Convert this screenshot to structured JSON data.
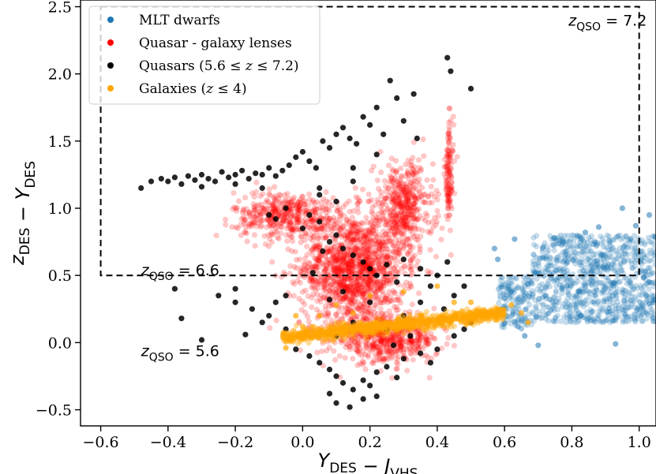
{
  "chart_data": {
    "type": "scatter",
    "xlabel": "Y_DES − J_VHS",
    "ylabel": "z_DES − Y_DES",
    "xlim": [
      -0.66,
      1.05
    ],
    "ylim": [
      -0.62,
      2.55
    ],
    "xticks": [
      -0.6,
      -0.4,
      -0.2,
      0.0,
      0.2,
      0.4,
      0.6,
      0.8,
      1.0
    ],
    "xtick_labels": [
      "−0.6",
      "−0.4",
      "−0.2",
      "0.0",
      "0.2",
      "0.4",
      "0.6",
      "0.8",
      "1.0"
    ],
    "yticks": [
      -0.5,
      0.0,
      0.5,
      1.0,
      1.5,
      2.0,
      2.5
    ],
    "ytick_labels": [
      "−0.5",
      "0.0",
      "0.5",
      "1.0",
      "1.5",
      "2.0",
      "2.5"
    ],
    "legend_position": "top-left",
    "legend": [
      {
        "label": "MLT dwarfs",
        "color": "#1f77b4"
      },
      {
        "label": "Quasar - galaxy lenses",
        "color": "#ff0000"
      },
      {
        "label": "Quasars (5.6 ≤ z ≤ 7.2)",
        "color": "#000000"
      },
      {
        "label": "Galaxies (z ≤ 4)",
        "color": "#ffa500"
      }
    ],
    "selection_box": {
      "x_min": -0.6,
      "x_max": 1.0,
      "y_min": 0.5,
      "y_max": 2.5
    },
    "annotations": [
      {
        "text": "z_QSO = 7.2",
        "x": 0.79,
        "y": 2.36
      },
      {
        "text": "z_QSO = 6.6",
        "x": -0.48,
        "y": 0.5
      },
      {
        "text": "z_QSO = 5.6",
        "x": -0.48,
        "y": -0.1
      }
    ],
    "series": [
      {
        "name": "MLT dwarfs",
        "color": "#1f77b4",
        "opacity": 0.25,
        "clusters": [
          {
            "n": 900,
            "x_range": [
              0.68,
              1.05
            ],
            "y_range": [
              0.15,
              0.8
            ]
          },
          {
            "n": 150,
            "x_range": [
              0.58,
              0.68
            ],
            "y_range": [
              0.1,
              0.5
            ]
          }
        ],
        "points": [
          [
            0.62,
            0.38
          ],
          [
            0.64,
            0.12
          ],
          [
            0.66,
            0.05
          ],
          [
            0.7,
            -0.02
          ],
          [
            0.93,
            -0.01
          ],
          [
            0.82,
            0.38
          ],
          [
            0.95,
            1.0
          ],
          [
            0.99,
            0.87
          ],
          [
            1.03,
            0.95
          ],
          [
            0.88,
            0.86
          ],
          [
            0.84,
            0.82
          ],
          [
            0.63,
            0.77
          ],
          [
            0.57,
            0.7
          ],
          [
            0.58,
            0.62
          ],
          [
            0.6,
            0.33
          ]
        ]
      },
      {
        "name": "Quasar - galaxy lenses",
        "color": "#ff0000",
        "opacity": 0.22,
        "clusters": [
          {
            "n": 1300,
            "center": [
              0.15,
              0.55
            ],
            "spread": [
              0.14,
              0.38
            ]
          },
          {
            "n": 400,
            "center": [
              -0.05,
              0.95
            ],
            "spread": [
              0.14,
              0.16
            ]
          },
          {
            "n": 450,
            "center": [
              0.3,
              1.0
            ],
            "spread": [
              0.08,
              0.32
            ]
          },
          {
            "n": 120,
            "center": [
              0.435,
              1.25
            ],
            "spread": [
              0.012,
              0.35
            ]
          },
          {
            "n": 500,
            "center": [
              0.25,
              0.02
            ],
            "spread": [
              0.14,
              0.15
            ]
          }
        ]
      },
      {
        "name": "Quasars (5.6 ≤ z ≤ 7.2)",
        "color": "#000000",
        "opacity": 0.85,
        "points": [
          [
            -0.48,
            1.15
          ],
          [
            -0.45,
            1.2
          ],
          [
            -0.42,
            1.22
          ],
          [
            -0.4,
            1.2
          ],
          [
            -0.38,
            1.23
          ],
          [
            -0.36,
            1.18
          ],
          [
            -0.34,
            1.24
          ],
          [
            -0.32,
            1.21
          ],
          [
            -0.3,
            1.25
          ],
          [
            -0.28,
            1.22
          ],
          [
            -0.26,
            1.2
          ],
          [
            -0.24,
            1.27
          ],
          [
            -0.22,
            1.23
          ],
          [
            -0.2,
            1.25
          ],
          [
            -0.18,
            1.28
          ],
          [
            -0.16,
            1.22
          ],
          [
            -0.14,
            1.26
          ],
          [
            -0.12,
            1.25
          ],
          [
            -0.1,
            1.3
          ],
          [
            -0.08,
            1.24
          ],
          [
            -0.06,
            1.28
          ],
          [
            -0.04,
            1.32
          ],
          [
            -0.02,
            1.38
          ],
          [
            0.0,
            1.42
          ],
          [
            0.02,
            1.35
          ],
          [
            0.04,
            1.3
          ],
          [
            0.06,
            1.5
          ],
          [
            0.08,
            1.45
          ],
          [
            0.1,
            1.55
          ],
          [
            0.12,
            1.6
          ],
          [
            0.14,
            1.52
          ],
          [
            0.16,
            1.48
          ],
          [
            0.18,
            1.68
          ],
          [
            0.2,
            1.62
          ],
          [
            0.22,
            1.75
          ],
          [
            0.24,
            1.55
          ],
          [
            0.26,
            1.95
          ],
          [
            0.28,
            1.82
          ],
          [
            0.3,
            1.65
          ],
          [
            0.33,
            1.85
          ],
          [
            0.43,
            2.12
          ],
          [
            0.44,
            2.02
          ],
          [
            0.5,
            1.89
          ],
          [
            0.34,
            1.52
          ],
          [
            0.15,
            1.3
          ],
          [
            -0.2,
            1.18
          ],
          [
            -0.12,
            1.15
          ],
          [
            -0.3,
            1.16
          ],
          [
            0.05,
            1.1
          ],
          [
            0.22,
            1.4
          ],
          [
            0.0,
            0.85
          ],
          [
            0.05,
            0.9
          ],
          [
            0.08,
            0.75
          ],
          [
            0.1,
            0.8
          ],
          [
            0.12,
            0.7
          ],
          [
            0.15,
            0.65
          ],
          [
            0.18,
            0.6
          ],
          [
            0.2,
            0.55
          ],
          [
            0.22,
            0.5
          ],
          [
            0.25,
            0.58
          ],
          [
            0.28,
            0.45
          ],
          [
            0.3,
            0.62
          ],
          [
            0.35,
            0.55
          ],
          [
            0.4,
            0.5
          ],
          [
            0.43,
            0.6
          ],
          [
            0.1,
            1.05
          ],
          [
            0.05,
            1.15
          ],
          [
            -0.05,
            1.0
          ],
          [
            0.15,
            1.2
          ],
          [
            0.02,
            0.95
          ],
          [
            -0.1,
            0.95
          ],
          [
            -0.08,
            0.92
          ],
          [
            0.06,
            0.68
          ],
          [
            0.12,
            0.38
          ],
          [
            0.08,
            0.32
          ],
          [
            -0.1,
            0.2
          ],
          [
            -0.15,
            0.25
          ],
          [
            -0.2,
            0.3
          ],
          [
            -0.05,
            0.1
          ],
          [
            -0.02,
            -0.05
          ],
          [
            0.02,
            -0.1
          ],
          [
            0.05,
            -0.15
          ],
          [
            0.08,
            -0.2
          ],
          [
            0.1,
            -0.25
          ],
          [
            0.12,
            -0.3
          ],
          [
            0.15,
            -0.35
          ],
          [
            0.18,
            -0.28
          ],
          [
            0.2,
            -0.32
          ],
          [
            0.22,
            -0.22
          ],
          [
            0.25,
            -0.18
          ],
          [
            0.28,
            -0.26
          ],
          [
            0.3,
            -0.12
          ],
          [
            0.35,
            -0.08
          ],
          [
            0.38,
            -0.15
          ],
          [
            0.4,
            -0.05
          ],
          [
            0.45,
            0.05
          ],
          [
            0.48,
            0.1
          ],
          [
            0.5,
            0.15
          ],
          [
            0.2,
            0.3
          ],
          [
            0.3,
            0.2
          ],
          [
            0.15,
            0.15
          ],
          [
            0.25,
            0.1
          ],
          [
            0.1,
            0.05
          ],
          [
            0.35,
            0.3
          ],
          [
            0.42,
            0.25
          ],
          [
            0.1,
            -0.45
          ],
          [
            0.14,
            -0.48
          ],
          [
            0.18,
            -0.42
          ],
          [
            0.08,
            -0.38
          ],
          [
            0.22,
            -0.4
          ],
          [
            -0.2,
            0.4
          ],
          [
            -0.25,
            0.35
          ],
          [
            -0.08,
            0.3
          ],
          [
            -0.12,
            0.15
          ],
          [
            -0.05,
            0.35
          ],
          [
            0.45,
            0.35
          ],
          [
            0.48,
            0.42
          ],
          [
            0.38,
            0.42
          ],
          [
            0.32,
            0.05
          ],
          [
            0.27,
            -0.02
          ],
          [
            -0.17,
            0.06
          ],
          [
            -0.3,
            0.02
          ],
          [
            -0.36,
            0.18
          ],
          [
            -0.38,
            0.4
          ],
          [
            0.03,
            0.52
          ]
        ]
      },
      {
        "name": "Galaxies (z ≤ 4)",
        "color": "#ffa500",
        "opacity": 0.4,
        "band": {
          "n": 900,
          "x_from": -0.06,
          "y_from": 0.04,
          "x_to": 0.6,
          "y_to": 0.22,
          "spread": 0.025
        },
        "points": [
          [
            0.0,
            0.12
          ],
          [
            0.05,
            0.2
          ],
          [
            0.1,
            0.28
          ],
          [
            0.15,
            0.22
          ],
          [
            0.2,
            0.35
          ],
          [
            0.3,
            0.38
          ],
          [
            0.35,
            0.2
          ],
          [
            0.45,
            0.3
          ],
          [
            0.5,
            0.3
          ],
          [
            -0.05,
            -0.04
          ],
          [
            0.62,
            0.28
          ],
          [
            0.65,
            0.22
          ],
          [
            0.67,
            0.15
          ],
          [
            -0.02,
            0.2
          ],
          [
            0.4,
            0.42
          ]
        ]
      }
    ]
  }
}
